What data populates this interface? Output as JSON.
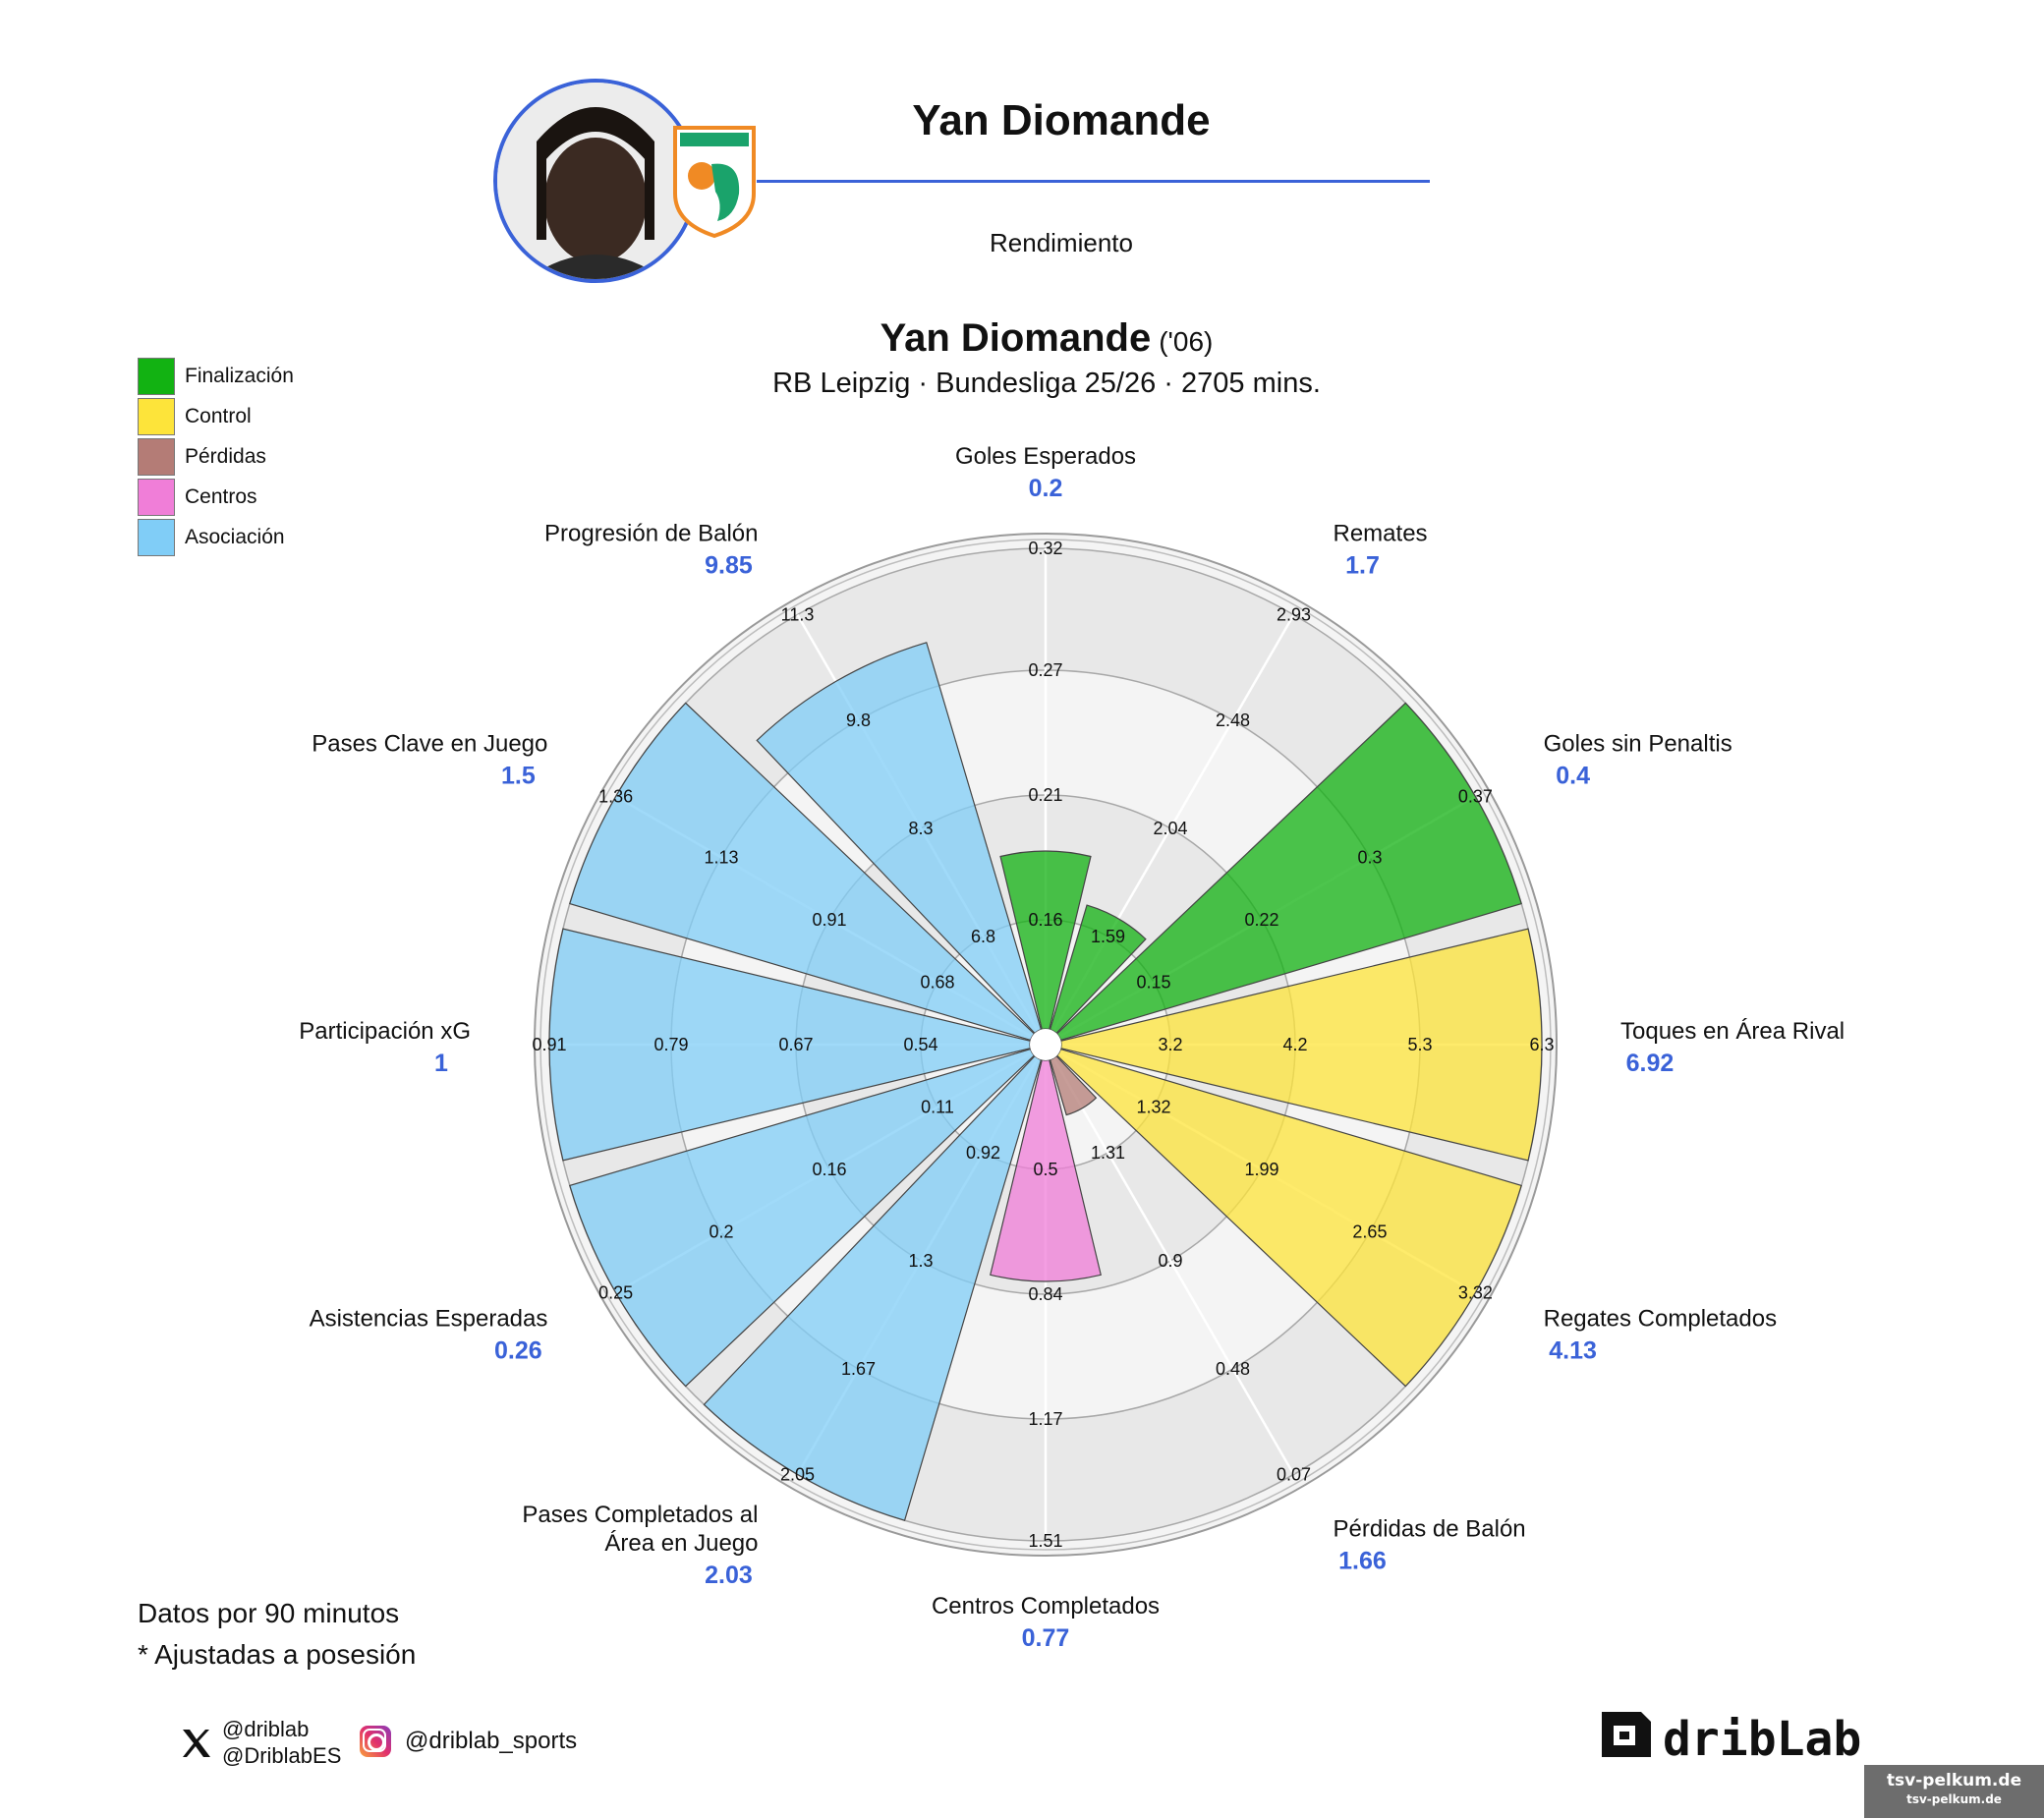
{
  "header": {
    "player_name": "Yan Diomande",
    "subtitle": "Rendimiento"
  },
  "badge": {
    "text": "CÔTE D'IVOIRE",
    "color_primary": "#f08a24",
    "color_secondary": "#1aa36b"
  },
  "title": {
    "name": "Yan Diomande",
    "year": "('06)",
    "subtitle": "RB Leipzig · Bundesliga 25/26 · 2705 mins."
  },
  "legend": [
    {
      "label": "Finalización",
      "color": "#12b212"
    },
    {
      "label": "Control",
      "color": "#fde43a"
    },
    {
      "label": "Pérdidas",
      "color": "#b47c76"
    },
    {
      "label": "Centros",
      "color": "#f07ed8"
    },
    {
      "label": "Asociación",
      "color": "#80cdf7"
    }
  ],
  "footnotes": {
    "line1": "Datos por 90 minutos",
    "line2": "* Ajustadas a posesión"
  },
  "social": {
    "x_handle_1": "@driblab",
    "x_handle_2": "@DriblabES",
    "instagram": "@driblab_sports"
  },
  "logo": {
    "text": "dribLab"
  },
  "watermark": {
    "line1": "tsv-pelkum.de",
    "line2": "tsv-pelkum.de"
  },
  "chart_data": {
    "type": "polar-bar",
    "title": "Yan Diomande",
    "rings": 4,
    "categories": [
      {
        "name": [
          "Goles Esperados"
        ],
        "value": "0.2",
        "group": "Finalización",
        "fill": 0.37,
        "ticks": [
          "0.16",
          "0.21",
          "0.27",
          "0.32"
        ]
      },
      {
        "name": [
          "Remates"
        ],
        "value": "1.7",
        "group": "Finalización",
        "fill": 0.27,
        "ticks": [
          "1.59",
          "2.04",
          "2.48",
          "2.93"
        ]
      },
      {
        "name": [
          "Goles sin Penaltis"
        ],
        "value": "0.4",
        "group": "Finalización",
        "fill": 1.0,
        "ticks": [
          "0.15",
          "0.22",
          "0.3",
          "0.37"
        ]
      },
      {
        "name": [
          "Toques en Área Rival"
        ],
        "value": "6.92",
        "group": "Control",
        "fill": 1.0,
        "ticks": [
          "3.2",
          "4.2",
          "5.3",
          "6.3"
        ]
      },
      {
        "name": [
          "Regates Completados"
        ],
        "value": "4.13",
        "group": "Control",
        "fill": 1.0,
        "ticks": [
          "1.32",
          "1.99",
          "2.65",
          "3.32"
        ]
      },
      {
        "name": [
          "Pérdidas de Balón"
        ],
        "value": "1.66",
        "group": "Pérdidas",
        "fill": 0.12,
        "ticks": [
          "1.31",
          "0.9",
          "0.48",
          "0.07"
        ]
      },
      {
        "name": [
          "Centros Completados"
        ],
        "value": "0.77",
        "group": "Centros",
        "fill": 0.46,
        "ticks": [
          "0.5",
          "0.84",
          "1.17",
          "1.51"
        ]
      },
      {
        "name": [
          "Pases Completados al",
          "Área en Juego"
        ],
        "value": "2.03",
        "group": "Asociación",
        "fill": 1.0,
        "ticks": [
          "0.92",
          "1.3",
          "1.67",
          "2.05"
        ]
      },
      {
        "name": [
          "Asistencias Esperadas"
        ],
        "value": "0.26",
        "group": "Asociación",
        "fill": 1.0,
        "ticks": [
          "0.11",
          "0.16",
          "0.2",
          "0.25"
        ]
      },
      {
        "name": [
          "Participación xG"
        ],
        "value": "1",
        "group": "Asociación",
        "fill": 1.0,
        "ticks": [
          "0.54",
          "0.67",
          "0.79",
          "0.91"
        ]
      },
      {
        "name": [
          "Pases Clave en Juego"
        ],
        "value": "1.5",
        "group": "Asociación",
        "fill": 1.0,
        "ticks": [
          "0.68",
          "0.91",
          "1.13",
          "1.36"
        ]
      },
      {
        "name": [
          "Progresión de Balón"
        ],
        "value": "9.85",
        "group": "Asociación",
        "fill": 0.84,
        "ticks": [
          "6.8",
          "8.3",
          "9.8",
          "11.3"
        ]
      }
    ]
  }
}
